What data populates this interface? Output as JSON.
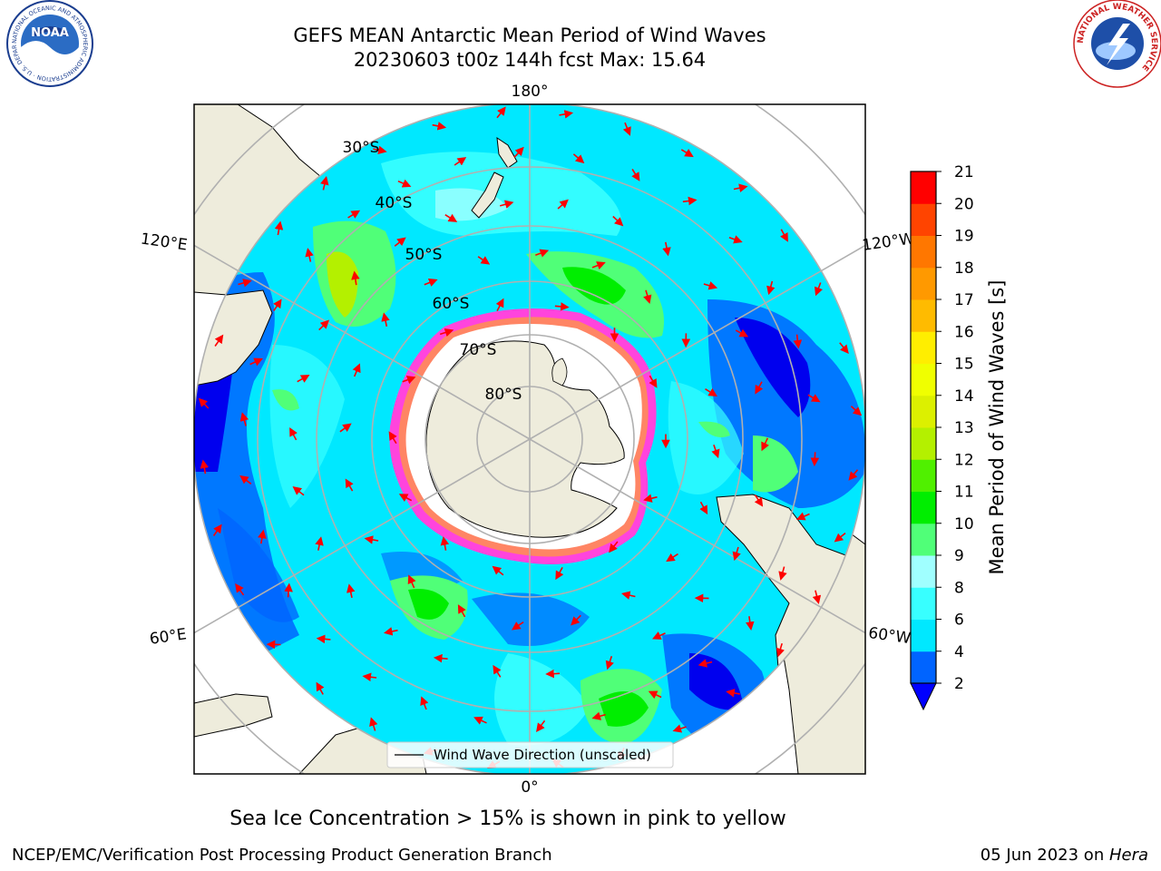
{
  "title": {
    "line1": "GEFS MEAN Antarctic Mean Period of Wind Waves",
    "line2": "20230603 t00z 144h fcst   Max: 15.64"
  },
  "logos": {
    "noaa": {
      "text": "NOAA",
      "ring_text": "NATIONAL OCEANIC AND ATMOSPHERIC ADMINISTRATION · U.S. DEPARTMENT OF COMMERCE"
    },
    "nws": {
      "ring_text": "NATIONAL WEATHER SERVICE"
    }
  },
  "map": {
    "longitude_labels": {
      "top": "180°",
      "upper_left": "120°E",
      "upper_right": "120°W",
      "lower_left": "60°E",
      "lower_right": "60°W",
      "bottom": "0°"
    },
    "latitude_labels": [
      "30°S",
      "40°S",
      "50°S",
      "60°S",
      "70°S",
      "80°S"
    ],
    "legend": "Wind Wave Direction (unscaled)",
    "colors": {
      "ocean_base": "#00e8ff",
      "land": "#eeecdc",
      "ice_edge": "#ff44dd",
      "arrow": "#ff0000",
      "grid": "#b0b0b0"
    }
  },
  "colorbar": {
    "label": "Mean Period of Wind Waves [s]",
    "ticks": [
      "2",
      "4",
      "6",
      "8",
      "9",
      "10",
      "11",
      "12",
      "13",
      "14",
      "15",
      "16",
      "17",
      "18",
      "19",
      "20",
      "21"
    ],
    "colors": [
      "#0064ff",
      "#00e8ff",
      "#38ffff",
      "#a0ffff",
      "#50ff78",
      "#00ee00",
      "#50f000",
      "#b4f000",
      "#dcf000",
      "#f0ff00",
      "#ffee00",
      "#ffbb00",
      "#ff9900",
      "#ff7700",
      "#ff4400",
      "#ff0000"
    ],
    "under_color": "#0000ff"
  },
  "note": "Sea Ice Concentration > 15% is shown in pink to yellow",
  "footer": {
    "left": "NCEP/EMC/Verification Post Processing Product Generation Branch",
    "right_date": "05 Jun 2023 on ",
    "right_host": "Hera"
  }
}
